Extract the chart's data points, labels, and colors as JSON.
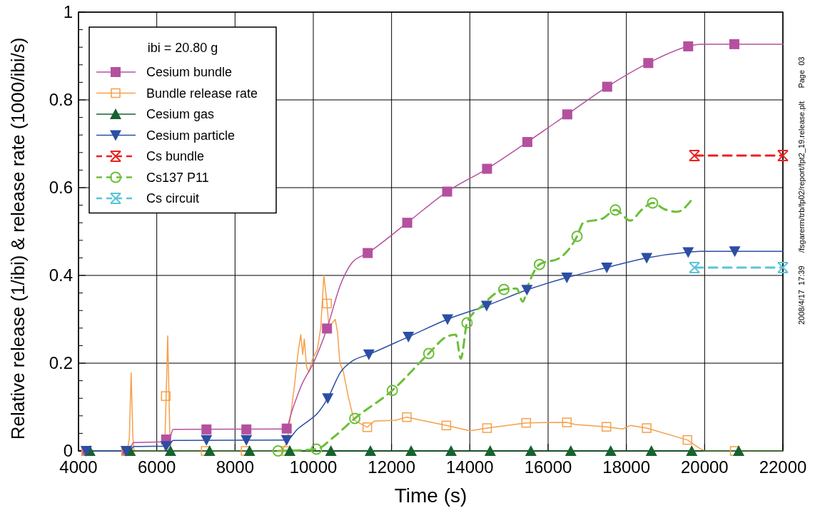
{
  "chart_data": {
    "type": "line",
    "xlabel": "Time (s)",
    "ylabel": "Relative release (1/ibi) & release rate (1000/ibi/s)",
    "legend_title": "ibi = 20.80 g",
    "legend": "top left",
    "grid": true,
    "xlim": [
      4000,
      22000
    ],
    "xticks": [
      4000,
      6000,
      8000,
      10000,
      12000,
      14000,
      16000,
      18000,
      20000,
      22000
    ],
    "ylim": [
      0,
      1
    ],
    "yticks": [
      0,
      {
        "value": 0.04,
        "label": null
      },
      {
        "value": 0.08,
        "label": null
      },
      {
        "value": 0.12,
        "label": null
      },
      {
        "value": 0.16,
        "label": null
      },
      0.2,
      {
        "value": 0.24,
        "label": null
      },
      {
        "value": 0.28,
        "label": null
      },
      {
        "value": 0.32,
        "label": null
      },
      {
        "value": 0.36,
        "label": null
      },
      0.4,
      {
        "value": 0.44,
        "label": null
      },
      {
        "value": 0.48,
        "label": null
      },
      {
        "value": 0.52,
        "label": null
      },
      {
        "value": 0.56,
        "label": null
      },
      0.6,
      {
        "value": 0.64,
        "label": null
      },
      {
        "value": 0.68,
        "label": null
      },
      {
        "value": 0.72,
        "label": null
      },
      {
        "value": 0.76,
        "label": null
      },
      0.8,
      {
        "value": 0.84,
        "label": null
      },
      {
        "value": 0.88,
        "label": null
      },
      {
        "value": 0.92,
        "label": null
      },
      {
        "value": 0.96,
        "label": null
      },
      1
    ],
    "annotations": [
      "2008/4/17  17:39      /fsgarerm/trb/fp02/report/fpt2_19.release.plt      Page  03"
    ],
    "series": [
      {
        "color": "#f5a04a",
        "marker": "none",
        "line_style": "solid",
        "x": [
          4200,
          5250,
          5300,
          5345,
          5390,
          5420,
          6200,
          6240,
          6280,
          6330,
          6360,
          9200,
          9330,
          9450,
          9520,
          9580,
          9620,
          9680,
          9730,
          9770,
          9830,
          9890,
          9980,
          10100,
          10190,
          10270,
          10350,
          10410,
          10470,
          10560,
          10620,
          10680,
          10770,
          10890,
          11040,
          11380,
          11560,
          12100,
          12390,
          13400,
          14000,
          14440,
          15440,
          16480,
          16700,
          17490,
          17900,
          18100,
          18520,
          19560,
          19850,
          20000,
          22000
        ],
        "values": [
          0,
          0,
          0.03,
          0.178,
          0.03,
          0,
          0,
          0.125,
          0.262,
          0.05,
          0,
          0,
          0.02,
          0.1,
          0.15,
          0.2,
          0.23,
          0.265,
          0.22,
          0.255,
          0.19,
          0.18,
          0.21,
          0.23,
          0.28,
          0.4,
          0.336,
          0.27,
          0.29,
          0.3,
          0.27,
          0.2,
          0.18,
          0.125,
          0.07,
          0.054,
          0.068,
          0.07,
          0.077,
          0.058,
          0.046,
          0.052,
          0.064,
          0.065,
          0.06,
          0.055,
          0.05,
          0.058,
          0.052,
          0.025,
          0.007,
          0,
          0
        ]
      },
      {
        "color": "#b5509f",
        "marker": "none",
        "line_style": "solid",
        "x": [
          4200,
          5300,
          5400,
          6300,
          6420,
          9300,
          9450,
          9700,
          10000,
          10350,
          10700,
          11000,
          11390,
          12400,
          13420,
          14440,
          15470,
          16490,
          17510,
          18560,
          19580,
          19900,
          22000
        ],
        "values": [
          0,
          0,
          0.019,
          0.021,
          0.049,
          0.05,
          0.09,
          0.15,
          0.2,
          0.279,
          0.38,
          0.43,
          0.451,
          0.52,
          0.591,
          0.643,
          0.704,
          0.767,
          0.83,
          0.884,
          0.922,
          0.927,
          0.927
        ]
      },
      {
        "color": "#17622e",
        "marker": "none",
        "line_style": "solid",
        "x": [
          4200,
          22000
        ],
        "values": [
          0,
          0
        ]
      },
      {
        "color": "#2c4ea3",
        "marker": "none",
        "line_style": "solid",
        "x": [
          4200,
          5300,
          5420,
          6300,
          6420,
          9320,
          9600,
          9900,
          10100,
          10370,
          10700,
          11000,
          11420,
          12430,
          13430,
          14430,
          15460,
          16480,
          17500,
          18520,
          19580,
          19900,
          22000
        ],
        "values": [
          0,
          0,
          0.01,
          0.011,
          0.024,
          0.025,
          0.05,
          0.07,
          0.085,
          0.12,
          0.18,
          0.205,
          0.22,
          0.26,
          0.3,
          0.331,
          0.367,
          0.395,
          0.418,
          0.44,
          0.453,
          0.455,
          0.455
        ]
      },
      {
        "color": "#6cbf3a",
        "marker": "none",
        "line_style": "dashed",
        "x": [
          9100,
          10080,
          10500,
          11060,
          12020,
          12950,
          13400,
          13640,
          13770,
          13930,
          14300,
          14870,
          15200,
          15350,
          15500,
          15780,
          16300,
          16740,
          16900,
          17400,
          17720,
          18100,
          18400,
          18670,
          19000,
          19300,
          19650
        ],
        "values": [
          0,
          0.004,
          0.03,
          0.074,
          0.138,
          0.222,
          0.26,
          0.265,
          0.21,
          0.292,
          0.33,
          0.368,
          0.37,
          0.34,
          0.38,
          0.425,
          0.44,
          0.489,
          0.52,
          0.53,
          0.549,
          0.525,
          0.55,
          0.565,
          0.55,
          0.545,
          0.57
        ]
      },
      {
        "type": "scatter",
        "name": "Cesium bundle",
        "color": "#b5509f",
        "marker": "square",
        "line_style": "solid",
        "x": [
          4200,
          5220,
          6240,
          7270,
          8290,
          9320,
          10350,
          11390,
          12400,
          13420,
          14440,
          15470,
          16490,
          17510,
          18560,
          19580,
          20760
        ],
        "values": [
          0,
          0,
          0.026,
          0.049,
          0.049,
          0.051,
          0.279,
          0.451,
          0.52,
          0.591,
          0.643,
          0.704,
          0.767,
          0.83,
          0.884,
          0.922,
          0.927
        ]
      },
      {
        "type": "scatter",
        "name": "Bundle release rate",
        "color": "#f5a04a",
        "marker": "square-open",
        "line_style": "solid",
        "x": [
          4200,
          5220,
          6230,
          7250,
          8270,
          9300,
          10350,
          11380,
          12390,
          13400,
          14440,
          15440,
          16480,
          17490,
          18520,
          19560,
          20770
        ],
        "values": [
          0,
          0,
          0.125,
          0,
          0,
          0,
          0.336,
          0.054,
          0.077,
          0.058,
          0.052,
          0.064,
          0.065,
          0.055,
          0.052,
          0.025,
          0
        ]
      },
      {
        "type": "scatter",
        "name": "Cesium gas",
        "color": "#17622e",
        "marker": "triangle",
        "line_style": "solid",
        "x": [
          4290,
          5320,
          6350,
          7350,
          8370,
          9400,
          10450,
          11460,
          12500,
          13520,
          14520,
          15560,
          16580,
          17600,
          18640,
          19670,
          20870
        ],
        "values": [
          0,
          0,
          0,
          0,
          0,
          0,
          0,
          0,
          0,
          0,
          0,
          0,
          0,
          0,
          0,
          0,
          0
        ]
      },
      {
        "type": "scatter",
        "name": "Cesium particle",
        "color": "#2c4ea3",
        "marker": "triangle-down",
        "line_style": "solid",
        "x": [
          4200,
          5220,
          6240,
          7270,
          8290,
          9320,
          10370,
          11420,
          12430,
          13430,
          14430,
          15460,
          16480,
          17500,
          18520,
          19580,
          20770
        ],
        "values": [
          0,
          0,
          0.011,
          0.025,
          0.025,
          0.025,
          0.12,
          0.22,
          0.26,
          0.3,
          0.331,
          0.367,
          0.395,
          0.418,
          0.44,
          0.453,
          0.455
        ]
      },
      {
        "name": "Cs bundle",
        "color": "#ee2020",
        "marker": "cross",
        "line_style": "dashed",
        "x": [
          19740,
          22000
        ],
        "values": [
          0.673,
          0.673
        ]
      },
      {
        "type": "scatter",
        "name": "Cs137 P11",
        "color": "#6cbf3a",
        "marker": "circle-open",
        "line_style": "dashed",
        "x": [
          9100,
          10080,
          11060,
          12020,
          12950,
          13930,
          14870,
          15780,
          16740,
          17720,
          18670
        ],
        "values": [
          0,
          0.004,
          0.074,
          0.138,
          0.222,
          0.292,
          0.368,
          0.425,
          0.489,
          0.549,
          0.565
        ]
      },
      {
        "name": "Cs circuit",
        "color": "#5cc4d8",
        "marker": "cross",
        "line_style": "dashed",
        "x": [
          19740,
          22000
        ],
        "values": [
          0.418,
          0.418
        ]
      }
    ]
  }
}
